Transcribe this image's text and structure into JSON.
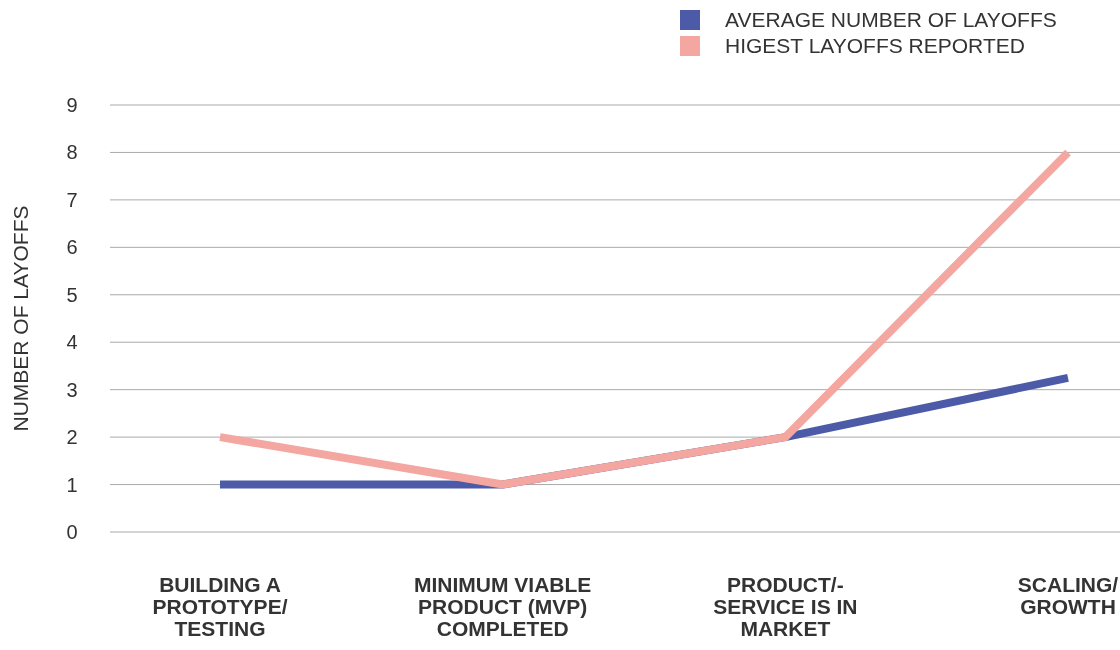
{
  "chart_data": {
    "type": "line",
    "ylabel": "NUMBER OF LAYOFFS",
    "categories": [
      "BUILDING A PROTOTYPE/ TESTING",
      "MINIMUM VIABLE PRODUCT (MVP) COMPLETED",
      "PRODUCT/- SERVICE IS IN MARKET",
      "SCALING/ GROWTH"
    ],
    "series": [
      {
        "name": "AVERAGE NUMBER OF LAYOFFS",
        "color": "#4c5aa8",
        "values": [
          1,
          1,
          2,
          3.25
        ]
      },
      {
        "name": "HIGEST LAYOFFS REPORTED",
        "color": "#f4a6a0",
        "values": [
          2,
          1,
          2,
          8
        ]
      }
    ],
    "ylim": [
      0,
      9
    ],
    "yticks": [
      0,
      1,
      2,
      3,
      4,
      5,
      6,
      7,
      8,
      9
    ],
    "grid": "y",
    "legend": "top right",
    "marker": "none",
    "line_style": "solid"
  }
}
